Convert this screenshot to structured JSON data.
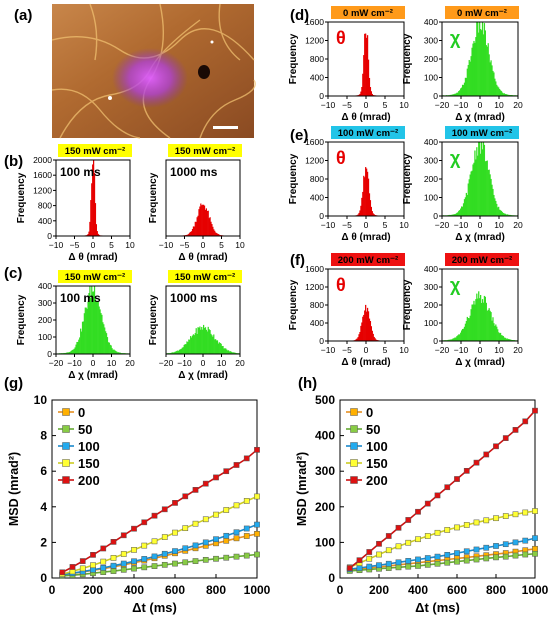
{
  "panel_labels": {
    "a": "(a)",
    "b": "(b)",
    "c": "(c)",
    "d": "(d)",
    "e": "(e)",
    "f": "(f)",
    "g": "(g)",
    "h": "(h)"
  },
  "colors": {
    "red": "#e60000",
    "green": "#33dd22",
    "yellow_badge": "#ffff00",
    "orange_badge": "#ff9a1a",
    "cyan_badge": "#22c4e8",
    "red_badge": "#ee1111"
  },
  "image_panel": {
    "description_visible": "",
    "scale_bar": true
  },
  "chart_data": [
    {
      "id": "b1",
      "type": "histogram",
      "badge": "150 mW cm⁻²",
      "badge_color": "#ffff00",
      "annotation": "100 ms",
      "xlabel": "Δ θ  (mrad)",
      "ylabel": "Frequency",
      "xlim": [
        -10,
        10
      ],
      "ylim": [
        0,
        2000
      ],
      "xticks": [
        "−10",
        "−5",
        "0",
        "5",
        "10"
      ],
      "yticks": [
        "0",
        "400",
        "800",
        "1200",
        "1600",
        "2000"
      ],
      "yticks_shown": true,
      "color": "#e60000",
      "center": 0,
      "peak": 1950,
      "width": 0.45
    },
    {
      "id": "b2",
      "type": "histogram",
      "badge": "150 mW cm⁻²",
      "badge_color": "#ffff00",
      "annotation": "1000 ms",
      "xlabel": "Δ θ  (mrad)",
      "ylabel": "Frequency",
      "xlim": [
        -10,
        10
      ],
      "ylim": [
        0,
        2000
      ],
      "xticks": [
        "−10",
        "−5",
        "0",
        "5",
        "10"
      ],
      "yticks": [],
      "yticks_shown": false,
      "color": "#e60000",
      "center": 0,
      "peak": 780,
      "width": 1.6
    },
    {
      "id": "c1",
      "type": "histogram",
      "badge": "150 mW cm⁻²",
      "badge_color": "#ffff00",
      "annotation": "100 ms",
      "xlabel": "Δ χ  (mrad)",
      "ylabel": "Frequency",
      "xlim": [
        -20,
        20
      ],
      "ylim": [
        0,
        400
      ],
      "xticks": [
        "−20",
        "−10",
        "0",
        "10",
        "20"
      ],
      "yticks": [
        "0",
        "100",
        "200",
        "300",
        "400"
      ],
      "yticks_shown": true,
      "color": "#33dd22",
      "center": 0,
      "peak": 355,
      "width": 4.5
    },
    {
      "id": "c2",
      "type": "histogram",
      "badge": "150 mW cm⁻²",
      "badge_color": "#ffff00",
      "annotation": "1000 ms",
      "xlabel": "Δ χ  (mrad)",
      "ylabel": "Frequency",
      "xlim": [
        -20,
        20
      ],
      "ylim": [
        0,
        400
      ],
      "xticks": [
        "−20",
        "−10",
        "0",
        "10",
        "20"
      ],
      "yticks": [],
      "yticks_shown": false,
      "color": "#33dd22",
      "center": 0,
      "peak": 145,
      "width": 6.5
    },
    {
      "id": "d1",
      "type": "histogram",
      "badge": "0 mW cm⁻²",
      "badge_color": "#ff9a1a",
      "symbol": "θ",
      "xlabel": "Δ θ  (mrad)",
      "ylabel": "Frequency",
      "xlim": [
        -10,
        10
      ],
      "ylim": [
        0,
        1600
      ],
      "xticks": [
        "−10",
        "−5",
        "0",
        "5",
        "10"
      ],
      "yticks": [
        "0",
        "400",
        "800",
        "1200",
        "1600"
      ],
      "yticks_shown": true,
      "color": "#e60000",
      "center": 0,
      "peak": 1380,
      "width": 0.55
    },
    {
      "id": "d2",
      "type": "histogram",
      "badge": "0 mW cm⁻²",
      "badge_color": "#ff9a1a",
      "symbol": "χ",
      "xlabel": "Δ χ  (mrad)",
      "ylabel": "Frequency",
      "xlim": [
        -20,
        20
      ],
      "ylim": [
        0,
        400
      ],
      "xticks": [
        "−20",
        "−10",
        "0",
        "10",
        "20"
      ],
      "yticks": [
        "0",
        "100",
        "200",
        "300",
        "400"
      ],
      "yticks_shown": true,
      "color": "#33dd22",
      "center": 0,
      "peak": 360,
      "width": 4.5
    },
    {
      "id": "e1",
      "type": "histogram",
      "badge": "100 mW cm⁻²",
      "badge_color": "#22c4e8",
      "symbol": "θ",
      "xlabel": "Δ θ  (mrad)",
      "ylabel": "Frequency",
      "xlim": [
        -10,
        10
      ],
      "ylim": [
        0,
        1600
      ],
      "xticks": [
        "−10",
        "−5",
        "0",
        "5",
        "10"
      ],
      "yticks": [
        "0",
        "400",
        "800",
        "1200",
        "1600"
      ],
      "yticks_shown": true,
      "color": "#e60000",
      "center": 0,
      "peak": 1000,
      "width": 0.75
    },
    {
      "id": "e2",
      "type": "histogram",
      "badge": "100 mW cm⁻²",
      "badge_color": "#22c4e8",
      "symbol": "χ",
      "xlabel": "Δ χ  (mrad)",
      "ylabel": "Frequency",
      "xlim": [
        -20,
        20
      ],
      "ylim": [
        0,
        400
      ],
      "xticks": [
        "−20",
        "−10",
        "0",
        "10",
        "20"
      ],
      "yticks": [
        "0",
        "100",
        "200",
        "300",
        "400"
      ],
      "yticks_shown": true,
      "color": "#33dd22",
      "center": 0,
      "peak": 365,
      "width": 4.5
    },
    {
      "id": "f1",
      "type": "histogram",
      "badge": "200 mW cm⁻²",
      "badge_color": "#ee1111",
      "symbol": "θ",
      "xlabel": "Δ θ  (mrad)",
      "ylabel": "Frequency",
      "xlim": [
        -10,
        10
      ],
      "ylim": [
        0,
        1600
      ],
      "xticks": [
        "−10",
        "−5",
        "0",
        "5",
        "10"
      ],
      "yticks": [
        "0",
        "400",
        "800",
        "1200",
        "1600"
      ],
      "yticks_shown": true,
      "color": "#e60000",
      "center": 0,
      "peak": 680,
      "width": 1.0
    },
    {
      "id": "f2",
      "type": "histogram",
      "badge": "200 mW cm⁻²",
      "badge_color": "#ee1111",
      "symbol": "χ",
      "xlabel": "Δ χ  (mrad)",
      "ylabel": "Frequency",
      "xlim": [
        -20,
        20
      ],
      "ylim": [
        0,
        400
      ],
      "xticks": [
        "−20",
        "−10",
        "0",
        "10",
        "20"
      ],
      "yticks": [
        "0",
        "100",
        "200",
        "300",
        "400"
      ],
      "yticks_shown": true,
      "color": "#33dd22",
      "center": 0,
      "peak": 225,
      "width": 5.5
    },
    {
      "id": "g",
      "type": "line",
      "xlabel": "Δt (ms)",
      "ylabel": "MSD (mrad²)",
      "xlim": [
        0,
        1000
      ],
      "ylim": [
        0,
        10
      ],
      "xticks": [
        "0",
        "200",
        "400",
        "600",
        "800",
        "1000"
      ],
      "yticks": [
        "0",
        "2",
        "4",
        "6",
        "8",
        "10"
      ],
      "x": [
        50,
        100,
        150,
        200,
        250,
        300,
        350,
        400,
        450,
        500,
        550,
        600,
        650,
        700,
        750,
        800,
        850,
        900,
        950,
        1000
      ],
      "series": [
        {
          "name": "0",
          "face": "#ffb000",
          "line": "#e69020",
          "values": [
            0.18,
            0.26,
            0.34,
            0.43,
            0.52,
            0.63,
            0.74,
            0.86,
            0.98,
            1.11,
            1.25,
            1.39,
            1.53,
            1.67,
            1.81,
            1.95,
            2.09,
            2.23,
            2.36,
            2.48
          ]
        },
        {
          "name": "50",
          "face": "#88cc44",
          "line": "#66aa33",
          "values": [
            0.12,
            0.16,
            0.21,
            0.27,
            0.33,
            0.39,
            0.46,
            0.53,
            0.6,
            0.67,
            0.74,
            0.81,
            0.88,
            0.95,
            1.02,
            1.08,
            1.14,
            1.2,
            1.26,
            1.32
          ]
        },
        {
          "name": "100",
          "face": "#22aaee",
          "line": "#1a88cc",
          "values": [
            0.18,
            0.27,
            0.36,
            0.46,
            0.57,
            0.69,
            0.81,
            0.94,
            1.07,
            1.21,
            1.36,
            1.51,
            1.67,
            1.83,
            2.0,
            2.18,
            2.37,
            2.57,
            2.78,
            3.0
          ]
        },
        {
          "name": "150",
          "face": "#ffff33",
          "line": "#cccc22",
          "values": [
            0.22,
            0.37,
            0.54,
            0.72,
            0.92,
            1.13,
            1.35,
            1.58,
            1.82,
            2.06,
            2.3,
            2.55,
            2.8,
            3.05,
            3.3,
            3.56,
            3.82,
            4.08,
            4.33,
            4.58
          ]
        },
        {
          "name": "200",
          "face": "#dd1111",
          "line": "#cc1111",
          "values": [
            0.32,
            0.62,
            0.95,
            1.3,
            1.66,
            2.03,
            2.4,
            2.77,
            3.13,
            3.5,
            3.86,
            4.22,
            4.59,
            4.95,
            5.3,
            5.65,
            6.0,
            6.35,
            6.72,
            7.2
          ]
        }
      ]
    },
    {
      "id": "h",
      "type": "line",
      "xlabel": "Δt (ms)",
      "ylabel": "MSD (mrad²)",
      "xlim": [
        0,
        1000
      ],
      "ylim": [
        0,
        500
      ],
      "xticks": [
        "0",
        "200",
        "400",
        "600",
        "800",
        "1000"
      ],
      "yticks": [
        "0",
        "100",
        "200",
        "300",
        "400",
        "500"
      ],
      "x": [
        50,
        100,
        150,
        200,
        250,
        300,
        350,
        400,
        450,
        500,
        550,
        600,
        650,
        700,
        750,
        800,
        850,
        900,
        950,
        1000
      ],
      "series": [
        {
          "name": "0",
          "face": "#ffb000",
          "line": "#e69020",
          "values": [
            22,
            25,
            28,
            31,
            34,
            37,
            40,
            43,
            46,
            49,
            52,
            55,
            58,
            61,
            64,
            67,
            70,
            74,
            78,
            82
          ]
        },
        {
          "name": "50",
          "face": "#88cc44",
          "line": "#66aa33",
          "values": [
            20,
            22,
            24,
            26,
            28,
            30,
            32,
            34,
            37,
            40,
            43,
            46,
            49,
            52,
            55,
            58,
            60,
            63,
            66,
            68
          ]
        },
        {
          "name": "100",
          "face": "#22aaee",
          "line": "#1a88cc",
          "values": [
            25,
            28,
            32,
            36,
            40,
            44,
            48,
            52,
            56,
            60,
            65,
            70,
            75,
            80,
            85,
            90,
            95,
            100,
            105,
            112
          ]
        },
        {
          "name": "150",
          "face": "#ffff33",
          "line": "#cccc22",
          "values": [
            30,
            42,
            54,
            66,
            78,
            89,
            99,
            109,
            118,
            127,
            135,
            142,
            149,
            156,
            162,
            168,
            174,
            179,
            184,
            188
          ]
        },
        {
          "name": "200",
          "face": "#dd1111",
          "line": "#cc1111",
          "values": [
            28,
            50,
            73,
            96,
            118,
            141,
            163,
            186,
            209,
            232,
            255,
            278,
            301,
            324,
            347,
            370,
            393,
            416,
            440,
            470
          ]
        }
      ]
    }
  ]
}
